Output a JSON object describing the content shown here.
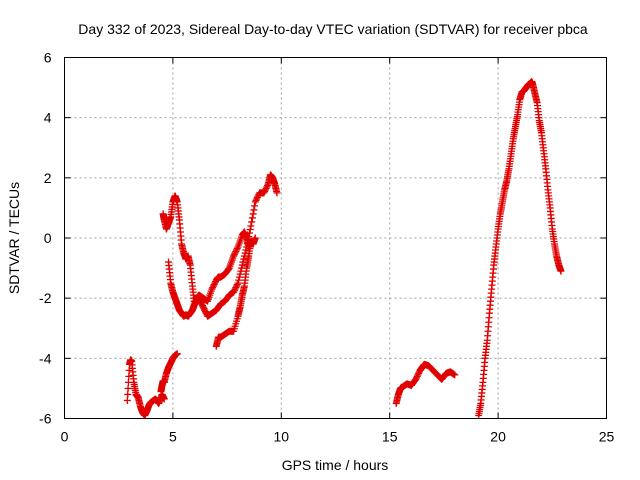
{
  "chart_data": {
    "type": "scatter",
    "title": "Day 332 of 2023, Sidereal Day-to-day VTEC variation (SDTVAR) for receiver pbca",
    "xlabel": "GPS time / hours",
    "ylabel": "SDTVAR / TECUs",
    "xlim": [
      0,
      25
    ],
    "ylim": [
      -6,
      6
    ],
    "xticks": [
      "0",
      "5",
      "10",
      "15",
      "20",
      "25"
    ],
    "yticks": [
      "-6",
      "-4",
      "-2",
      "0",
      "2",
      "4",
      "6"
    ],
    "grid": true,
    "marker": "+",
    "color": "#e00000",
    "series": [
      {
        "x": [
          2.9,
          3.0,
          3.05,
          3.1,
          3.2,
          3.3,
          3.4,
          3.5,
          3.6,
          3.7,
          3.8,
          3.9,
          4.0,
          4.2,
          4.35,
          4.5,
          4.6
        ],
        "y": [
          -5.4,
          -4.2,
          -4.05,
          -4.1,
          -4.8,
          -5.2,
          -5.3,
          -5.6,
          -5.8,
          -5.9,
          -5.75,
          -5.55,
          -5.45,
          -5.35,
          -5.5,
          -5.2,
          -5.35
        ]
      },
      {
        "x": [
          4.45,
          4.5,
          4.55,
          4.6,
          4.7,
          4.8,
          4.9,
          5.0,
          5.1,
          5.2
        ],
        "y": [
          -5.1,
          -4.9,
          -4.75,
          -4.8,
          -4.5,
          -4.3,
          -4.15,
          -4.0,
          -3.9,
          -3.85
        ]
      },
      {
        "x": [
          4.55,
          4.6,
          4.7,
          4.8,
          4.9,
          5.0,
          5.1,
          5.2,
          5.3,
          5.4,
          5.5,
          5.6,
          5.7,
          5.8,
          5.9,
          6.0,
          6.1,
          6.2,
          6.4,
          6.6,
          6.8,
          7.0,
          7.1,
          7.2,
          7.4,
          7.6,
          7.8,
          8.0,
          8.2,
          8.3,
          8.4,
          8.5
        ],
        "y": [
          0.8,
          0.6,
          0.3,
          0.5,
          0.7,
          1.2,
          1.4,
          1.2,
          0.6,
          -0.2,
          -0.5,
          -0.7,
          -0.6,
          -0.9,
          -1.6,
          -2.2,
          -2.0,
          -1.9,
          -2.0,
          -2.1,
          -1.7,
          -1.4,
          -1.3,
          -1.3,
          -1.2,
          -1.0,
          -0.6,
          -0.3,
          0.1,
          0.2,
          0.0,
          -0.3
        ]
      },
      {
        "x": [
          4.8,
          4.9,
          5.0,
          5.1,
          5.2,
          5.3,
          5.4,
          5.5,
          5.6,
          5.7,
          5.8,
          5.9,
          6.0,
          6.2,
          6.4,
          6.6,
          6.8,
          7.0,
          7.2,
          7.4,
          7.6,
          7.8,
          8.0,
          8.2,
          8.4,
          8.6,
          8.8,
          9.0,
          9.2,
          9.4,
          9.5,
          9.6,
          9.7,
          9.8
        ],
        "y": [
          -0.8,
          -1.5,
          -1.8,
          -2.0,
          -2.2,
          -2.4,
          -2.5,
          -2.6,
          -2.55,
          -2.6,
          -2.5,
          -2.4,
          -2.2,
          -2.0,
          -2.3,
          -2.6,
          -2.5,
          -2.4,
          -2.2,
          -2.1,
          -1.9,
          -1.8,
          -1.5,
          -0.9,
          -0.3,
          0.4,
          1.2,
          1.5,
          1.5,
          1.8,
          2.1,
          2.0,
          1.8,
          1.5
        ]
      },
      {
        "x": [
          7.0,
          7.1,
          7.2,
          7.4,
          7.6,
          7.8,
          8.0,
          8.1,
          8.2,
          8.3,
          8.4,
          8.5,
          8.6,
          8.7,
          8.8
        ],
        "y": [
          -3.6,
          -3.3,
          -3.3,
          -3.2,
          -3.1,
          -3.1,
          -2.6,
          -2.3,
          -1.9,
          -1.6,
          -1.0,
          -0.6,
          -0.1,
          -0.2,
          0.0
        ]
      },
      {
        "x": [
          15.3,
          15.4,
          15.5,
          15.6,
          15.8,
          16.0,
          16.2,
          16.4,
          16.5,
          16.6,
          16.8,
          17.0,
          17.2,
          17.4,
          17.6,
          17.8,
          18.0
        ],
        "y": [
          -5.5,
          -5.2,
          -5.0,
          -4.95,
          -4.85,
          -4.9,
          -4.7,
          -4.4,
          -4.3,
          -4.2,
          -4.25,
          -4.4,
          -4.55,
          -4.7,
          -4.5,
          -4.45,
          -4.55
        ]
      },
      {
        "x": [
          19.1,
          19.2,
          19.3,
          19.4,
          19.5,
          19.6,
          19.7,
          19.8,
          19.9,
          20.0,
          20.1,
          20.2,
          20.3,
          20.4,
          20.5,
          20.6,
          20.7,
          20.8,
          20.9,
          21.0,
          21.1,
          21.2,
          21.3,
          21.4,
          21.5,
          21.55,
          21.6,
          21.7,
          21.8,
          21.9,
          22.0,
          22.1,
          22.2,
          22.3,
          22.4,
          22.5,
          22.6,
          22.7,
          22.8,
          22.9
        ],
        "y": [
          -5.9,
          -5.5,
          -4.8,
          -4.0,
          -3.4,
          -2.5,
          -1.7,
          -0.9,
          -0.3,
          0.3,
          0.8,
          1.2,
          1.6,
          1.9,
          2.3,
          2.8,
          3.3,
          3.7,
          4.1,
          4.6,
          4.85,
          4.9,
          5.0,
          5.1,
          5.15,
          5.2,
          5.1,
          4.8,
          4.5,
          3.9,
          3.5,
          2.9,
          2.3,
          1.6,
          1.0,
          0.3,
          -0.2,
          -0.6,
          -0.9,
          -1.1
        ]
      }
    ]
  }
}
